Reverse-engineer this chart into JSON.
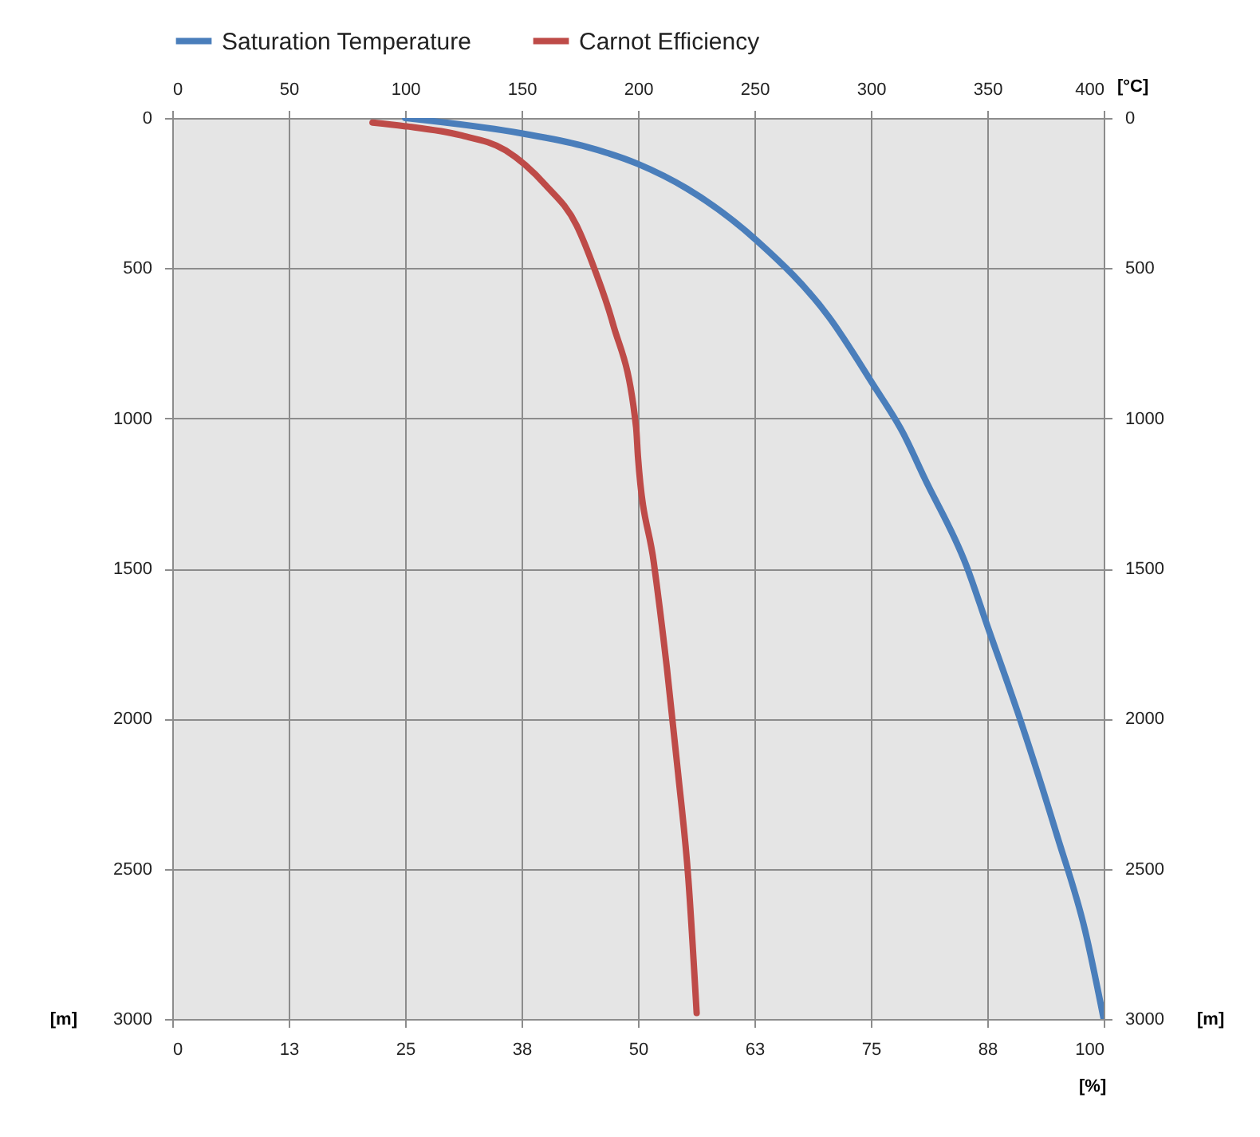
{
  "chart_data": {
    "type": "line",
    "xlabel": "[%]",
    "x2label": "[°C]",
    "ylabel": "[m]",
    "y2label": "[m]",
    "xlim": [
      0,
      100
    ],
    "xticks": [
      0,
      {
        "value": 12.5,
        "label": "13"
      },
      25,
      {
        "value": 37.5,
        "label": "38"
      },
      50,
      {
        "value": 62.5,
        "label": "63"
      },
      75,
      {
        "value": 87.5,
        "label": "88"
      },
      100
    ],
    "x2lim": [
      0,
      400
    ],
    "x2ticks": [
      0,
      50,
      100,
      150,
      200,
      250,
      300,
      350,
      400
    ],
    "ylim": [
      3000,
      0
    ],
    "yticks": [
      0,
      500,
      1000,
      1500,
      2000,
      2500,
      3000
    ],
    "y2lim": [
      3000,
      0
    ],
    "y2ticks": [
      0,
      500,
      1000,
      1500,
      2000,
      2500,
      3000
    ],
    "grid": true,
    "legend": "top",
    "series": [
      {
        "name": "Saturation Temperature",
        "color": "#4a7ebb",
        "axis": "x2",
        "x": [
          100,
          150,
          176,
          200,
          221,
          251,
          282,
          301,
          314,
          323,
          341,
          350,
          364,
          380,
          392,
          400
        ],
        "values": [
          0,
          51,
          92,
          153,
          235,
          408,
          663,
          888,
          1051,
          1198,
          1490,
          1690,
          2000,
          2390,
          2705,
          3000
        ]
      },
      {
        "name": "Carnot Efficiency",
        "color": "#be4b48",
        "x": [
          21.5,
          24.9,
          30.9,
          35.8,
          40.1,
          43.4,
          45.3,
          47.3,
          49.8,
          50.0,
          51.7,
          53.1,
          54.3,
          55.4,
          56.3
        ],
        "values": [
          15,
          27,
          57,
          108,
          224,
          357,
          500,
          684,
          1030,
          1128,
          1480,
          1830,
          2180,
          2530,
          2980
        ]
      }
    ]
  }
}
